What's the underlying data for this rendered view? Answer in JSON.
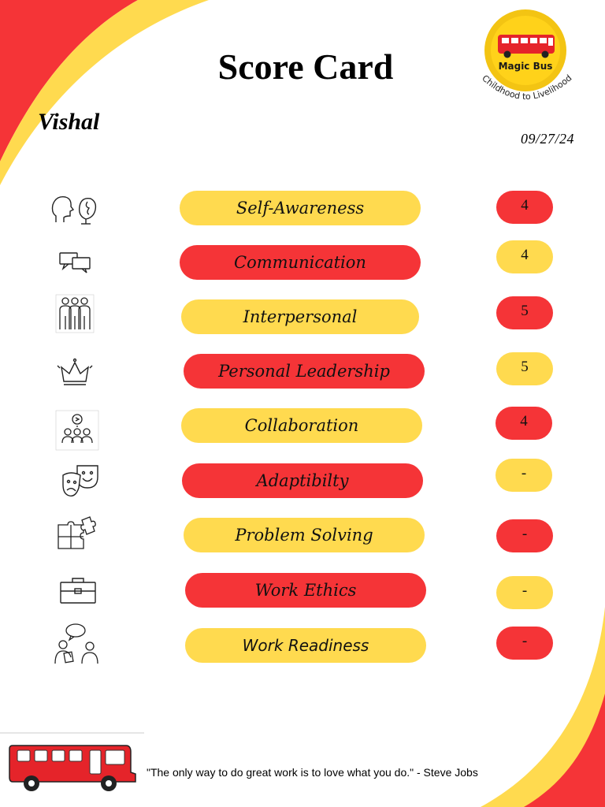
{
  "title": "Score Card",
  "student_name": "Vishal",
  "date": "09/27/24",
  "logo": {
    "brand": "Magic Bus",
    "tagline": "Childhood to Livelihood"
  },
  "colors": {
    "red": "#F53437",
    "yellow": "#FFDA4F"
  },
  "skills": [
    {
      "label": "Self-Awareness",
      "score": "4",
      "pill_color": "yellow",
      "score_color": "red",
      "icon": "head-profile-icon"
    },
    {
      "label": "Communication",
      "score": "4",
      "pill_color": "red",
      "score_color": "yellow",
      "icon": "speech-bubbles-icon"
    },
    {
      "label": "Interpersonal",
      "score": "5",
      "pill_color": "yellow",
      "score_color": "red",
      "icon": "people-group-icon"
    },
    {
      "label": "Personal Leadership",
      "score": "5",
      "pill_color": "red",
      "score_color": "yellow",
      "icon": "crown-icon"
    },
    {
      "label": "Collaboration",
      "score": "4",
      "pill_color": "yellow",
      "score_color": "red",
      "icon": "team-idea-icon"
    },
    {
      "label": "Adaptibilty",
      "score": "-",
      "pill_color": "red",
      "score_color": "yellow",
      "icon": "theater-masks-icon"
    },
    {
      "label": "Problem Solving",
      "score": "-",
      "pill_color": "yellow",
      "score_color": "red",
      "icon": "puzzle-pieces-icon"
    },
    {
      "label": "Work Ethics",
      "score": "-",
      "pill_color": "red",
      "score_color": "yellow",
      "icon": "briefcase-icon"
    },
    {
      "label": "Work Readiness",
      "score": "-",
      "pill_color": "yellow",
      "score_color": "red",
      "icon": "interview-people-icon"
    }
  ],
  "quote": "\"The only way to do great work is to love what you do.\" - Steve Jobs"
}
